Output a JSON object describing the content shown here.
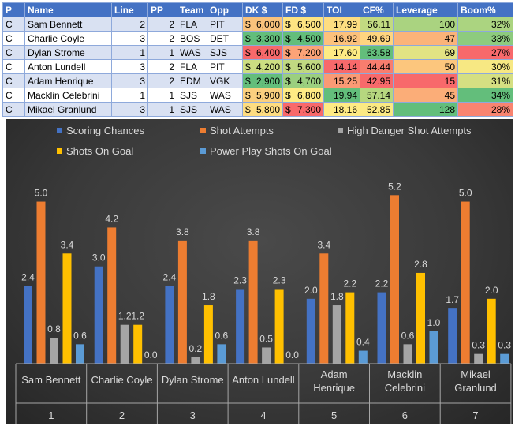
{
  "table": {
    "headers": [
      "P",
      "Name",
      "Line",
      "PP",
      "Team",
      "Opp",
      "DK $",
      "FD $",
      "TOI",
      "CF%",
      "Leverage",
      "Boom%"
    ],
    "rows": [
      {
        "pos": "C",
        "name": "Sam Bennett",
        "line": "2",
        "pp": "2",
        "team": "FLA",
        "opp": "PIT",
        "dk": "6,000",
        "fd": "6,500",
        "toi": "17.99",
        "cf": "56.11",
        "leverage": "100",
        "boom": "32%"
      },
      {
        "pos": "C",
        "name": "Charlie Coyle",
        "line": "3",
        "pp": "2",
        "team": "BOS",
        "opp": "DET",
        "dk": "3,300",
        "fd": "4,500",
        "toi": "16.92",
        "cf": "49.69",
        "leverage": "47",
        "boom": "33%"
      },
      {
        "pos": "C",
        "name": "Dylan Strome",
        "line": "1",
        "pp": "1",
        "team": "WAS",
        "opp": "SJS",
        "dk": "6,400",
        "fd": "7,200",
        "toi": "17.60",
        "cf": "63.58",
        "leverage": "69",
        "boom": "27%"
      },
      {
        "pos": "C",
        "name": "Anton Lundell",
        "line": "3",
        "pp": "2",
        "team": "FLA",
        "opp": "PIT",
        "dk": "4,200",
        "fd": "5,600",
        "toi": "14.14",
        "cf": "44.44",
        "leverage": "50",
        "boom": "30%"
      },
      {
        "pos": "C",
        "name": "Adam Henrique",
        "line": "3",
        "pp": "2",
        "team": "EDM",
        "opp": "VGK",
        "dk": "2,900",
        "fd": "4,700",
        "toi": "15.25",
        "cf": "42.95",
        "leverage": "15",
        "boom": "31%"
      },
      {
        "pos": "C",
        "name": "Macklin Celebrini",
        "line": "1",
        "pp": "1",
        "team": "SJS",
        "opp": "WAS",
        "dk": "5,900",
        "fd": "6,800",
        "toi": "19.94",
        "cf": "57.14",
        "leverage": "45",
        "boom": "34%"
      },
      {
        "pos": "C",
        "name": "Mikael Granlund",
        "line": "3",
        "pp": "1",
        "team": "SJS",
        "opp": "WAS",
        "dk": "5,800",
        "fd": "7,300",
        "toi": "18.16",
        "cf": "52.85",
        "leverage": "128",
        "boom": "28%"
      }
    ],
    "currency_symbol": "$",
    "cell_colors": {
      "dk": [
        "#f9c27c",
        "#63be7b",
        "#f8696b",
        "#ccdd82",
        "#63be7b",
        "#fbd07f",
        "#fedd81"
      ],
      "fd": [
        "#fee482",
        "#63be7b",
        "#fca377",
        "#c0d981",
        "#9bcf7f",
        "#ffeb84",
        "#f8696b"
      ],
      "toi": [
        "#fedd81",
        "#fcc17c",
        "#feeb84",
        "#f8696b",
        "#fa9a75",
        "#63be7b",
        "#ffeb84"
      ],
      "cf": [
        "#c2da81",
        "#fed580",
        "#63be7b",
        "#f97d6e",
        "#f8696b",
        "#b6d77f",
        "#fbe983"
      ],
      "leverage": [
        "#aad380",
        "#fbb379",
        "#e2e383",
        "#fcc67d",
        "#f8696b",
        "#fbad78",
        "#63be7b"
      ],
      "boom": [
        "#abd480",
        "#8dcb7e",
        "#f8696b",
        "#f7e883",
        "#d5df82",
        "#63be7b",
        "#f98470"
      ]
    }
  },
  "chart_data": {
    "type": "bar",
    "categories": [
      "Sam Bennett",
      "Charlie Coyle",
      "Dylan Strome",
      "Anton Lundell",
      "Adam Henrique",
      "Macklin Celebrini",
      "Mikael Granlund"
    ],
    "category_numbers": [
      "1",
      "2",
      "3",
      "4",
      "5",
      "6",
      "7"
    ],
    "series": [
      {
        "name": "Scoring Chances",
        "color": "#4472c4",
        "values": [
          2.4,
          3.0,
          2.4,
          2.3,
          2.0,
          2.2,
          1.7
        ],
        "labels": [
          "2.4",
          "3.0",
          "2.4",
          "2.3",
          "2.0",
          "2.2",
          "1.7"
        ]
      },
      {
        "name": "Shot Attempts",
        "color": "#ed7d31",
        "values": [
          5.0,
          4.2,
          3.8,
          3.8,
          3.4,
          5.2,
          5.0
        ],
        "labels": [
          "5.0",
          "4.2",
          "3.8",
          "3.8",
          "3.4",
          "5.2",
          "5.0"
        ]
      },
      {
        "name": "High Danger Shot Attempts",
        "color": "#a5a5a5",
        "values": [
          0.8,
          1.2,
          0.2,
          0.5,
          1.8,
          0.6,
          0.3
        ],
        "labels": [
          "0.8",
          "1.2",
          "0.2",
          "0.5",
          "1.8",
          "0.6",
          "0.3"
        ]
      },
      {
        "name": "Shots On Goal",
        "color": "#ffc000",
        "values": [
          3.4,
          1.2,
          1.8,
          2.3,
          2.2,
          2.8,
          2.0
        ],
        "labels": [
          "3.4",
          "1.2",
          "1.8",
          "2.3",
          "2.2",
          "2.8",
          "2.0"
        ]
      },
      {
        "name": "Power Play Shots On Goal",
        "color": "#5b9bd5",
        "values": [
          0.6,
          0.0,
          0.6,
          0.0,
          0.4,
          1.0,
          0.3
        ],
        "labels": [
          "0.6",
          "0.0",
          "0.6",
          "0.0",
          "0.4",
          "1.0",
          "0.3"
        ]
      }
    ],
    "ylim": [
      0,
      5.5
    ],
    "grid": false,
    "legend": "top",
    "title": "",
    "xlabel": "",
    "ylabel": ""
  }
}
